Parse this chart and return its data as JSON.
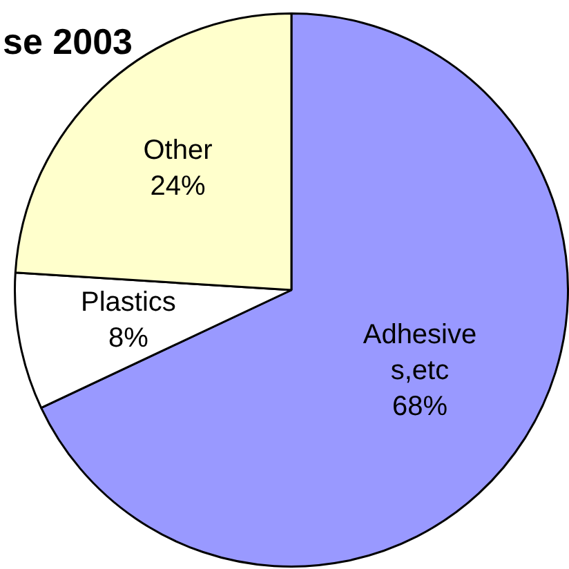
{
  "chart_data": {
    "type": "pie",
    "title": "se 2003",
    "categories": [
      "Adhesives,etc",
      "Plastics",
      "Other"
    ],
    "values": [
      68,
      8,
      24
    ],
    "colors": [
      "#9999ff",
      "#ffffff",
      "#ffffcc"
    ],
    "value_labels": [
      "68%",
      "8%",
      "24%"
    ],
    "legend": false
  }
}
